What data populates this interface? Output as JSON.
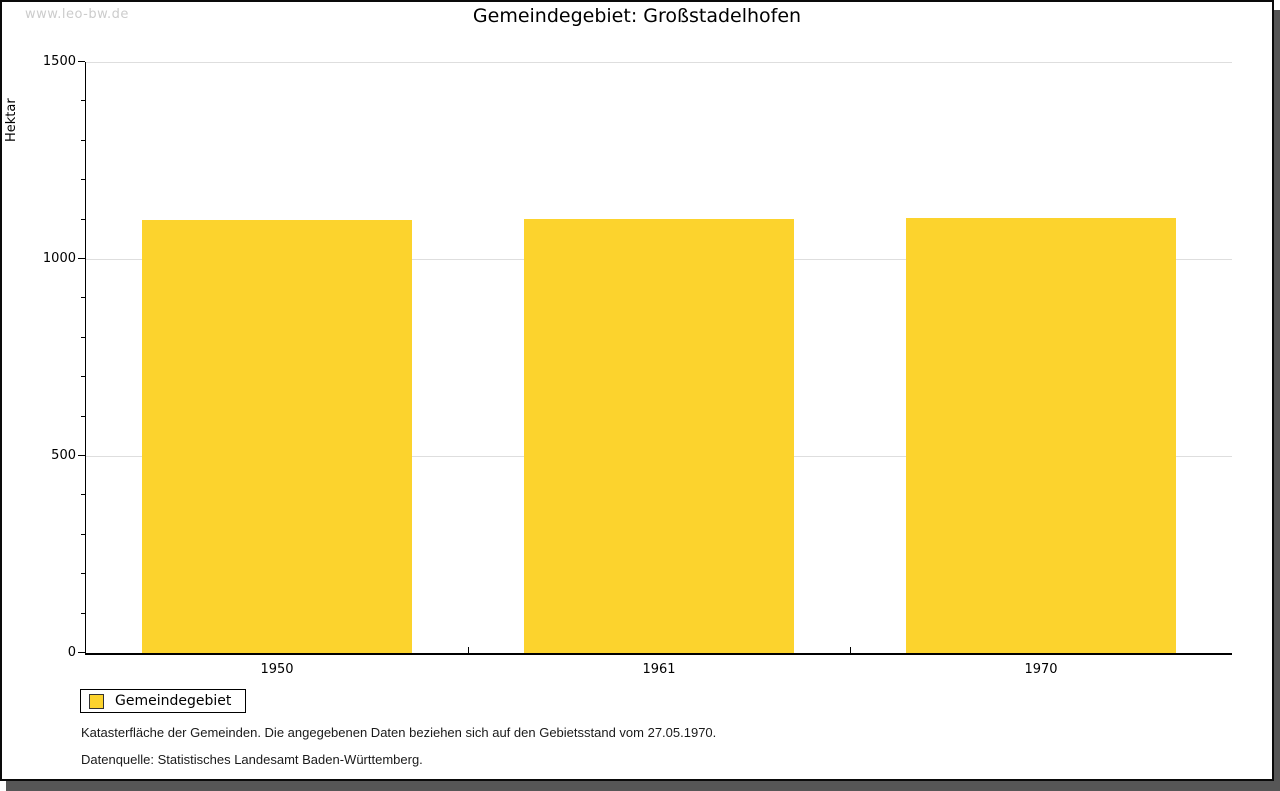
{
  "watermark": "www.leo-bw.de",
  "title": "Gemeindegebiet: Großstadelhofen",
  "legend": {
    "label": "Gemeindegebiet"
  },
  "footnotes": {
    "line1": "Katasterfläche der Gemeinden. Die angegebenen Daten beziehen sich auf den Gebietsstand vom 27.05.1970.",
    "line2": "Datenquelle: Statistisches Landesamt Baden-Württemberg."
  },
  "colors": {
    "bar": "#FCD32D",
    "gridline": "#DEDEDE",
    "axis": "#000000",
    "watermark": "#CCCCCC",
    "frame_shadow": "#565656"
  },
  "chart_data": {
    "type": "bar",
    "categories": [
      "1950",
      "1961",
      "1970"
    ],
    "series": [
      {
        "name": "Gemeindegebiet",
        "values": [
          1100,
          1101,
          1104
        ]
      }
    ],
    "title": "Gemeindegebiet: Großstadelhofen",
    "xlabel": "",
    "ylabel": "Hektar",
    "ylim": [
      0,
      1500
    ],
    "yticks": [
      0,
      500,
      1000,
      1500
    ],
    "minor_tick_step": 100,
    "grid": "horizontal-major-only",
    "legend_position": "bottom-left",
    "bar_color": "#FCD32D"
  }
}
